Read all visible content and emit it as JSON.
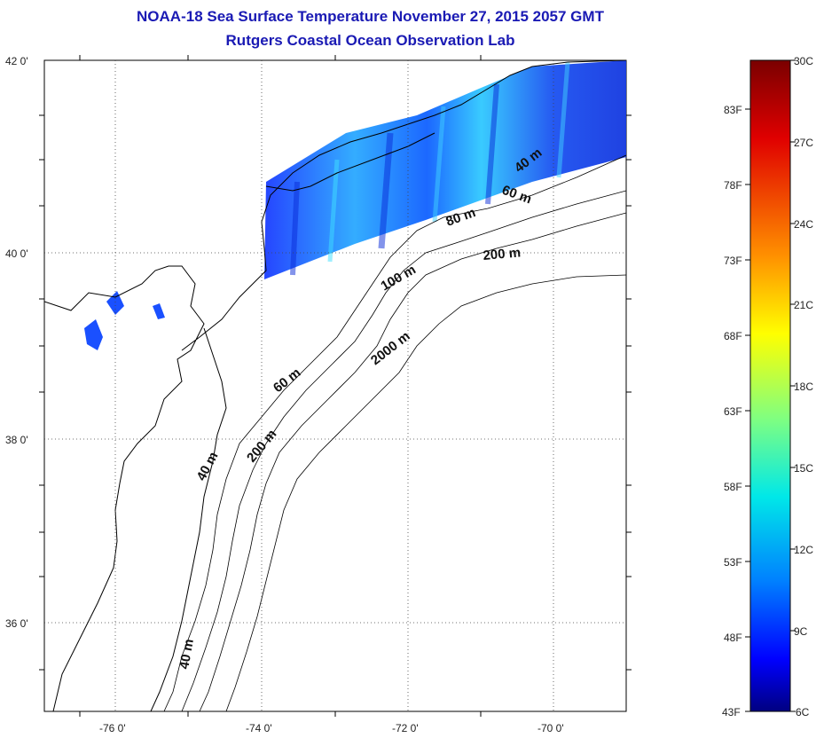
{
  "title": "NOAA-18 Sea Surface Temperature November 27, 2015 2057 GMT",
  "subtitle": "Rutgers Coastal Ocean Observation Lab",
  "map": {
    "lon_range": [
      -77,
      -69
    ],
    "lat_range": [
      35,
      42
    ],
    "lon_ticks": [
      {
        "value": -76,
        "label": "-76 0'"
      },
      {
        "value": -74,
        "label": "-74 0'"
      },
      {
        "value": -72,
        "label": "-72 0'"
      },
      {
        "value": -70,
        "label": "-70 0'"
      }
    ],
    "lat_ticks": [
      {
        "value": 42,
        "label": "42 0'"
      },
      {
        "value": 40,
        "label": "40 0'"
      },
      {
        "value": 38,
        "label": "38 0'"
      },
      {
        "value": 36,
        "label": "36 0'"
      }
    ],
    "contour_labels": [
      "40 m",
      "60 m",
      "80 m",
      "200 m",
      "100 m",
      "2000 m",
      "60 m",
      "40 m",
      "200 m",
      "40 m"
    ]
  },
  "colorbar": {
    "celsius_labels": [
      "30C",
      "27C",
      "24C",
      "21C",
      "18C",
      "15C",
      "12C",
      "9C",
      "6C"
    ],
    "fahrenheit_labels": [
      "83F",
      "78F",
      "73F",
      "68F",
      "63F",
      "58F",
      "53F",
      "48F",
      "43F"
    ],
    "colors": [
      "#800000",
      "#ff0000",
      "#ff8000",
      "#ffff00",
      "#80ff80",
      "#00ffff",
      "#0080ff",
      "#0000ff",
      "#000080"
    ]
  }
}
